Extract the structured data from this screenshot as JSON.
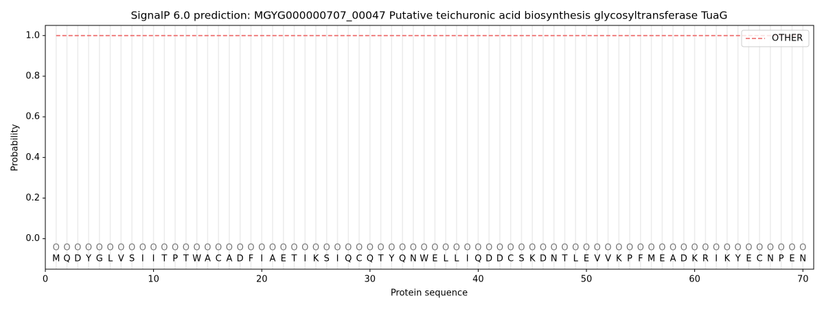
{
  "chart_data": {
    "type": "line",
    "title": "SignalP 6.0 prediction: MGYG000000707_00047 Putative teichuronic acid biosynthesis glycosyltransferase TuaG",
    "x_label": "Protein sequence",
    "y_label": "Probability",
    "x": [
      1,
      2,
      3,
      4,
      5,
      6,
      7,
      8,
      9,
      10,
      11,
      12,
      13,
      14,
      15,
      16,
      17,
      18,
      19,
      20,
      21,
      22,
      23,
      24,
      25,
      26,
      27,
      28,
      29,
      30,
      31,
      32,
      33,
      34,
      35,
      36,
      37,
      38,
      39,
      40,
      41,
      42,
      43,
      44,
      45,
      46,
      47,
      48,
      49,
      50,
      51,
      52,
      53,
      54,
      55,
      56,
      57,
      58,
      59,
      60,
      61,
      62,
      63,
      64,
      65,
      66,
      67,
      68,
      69,
      70
    ],
    "residues": [
      "M",
      "Q",
      "D",
      "Y",
      "G",
      "L",
      "V",
      "S",
      "I",
      "I",
      "T",
      "P",
      "T",
      "W",
      "A",
      "C",
      "A",
      "D",
      "F",
      "I",
      "A",
      "E",
      "T",
      "I",
      "K",
      "S",
      "I",
      "Q",
      "C",
      "Q",
      "T",
      "Y",
      "Q",
      "N",
      "W",
      "E",
      "L",
      "L",
      "I",
      "Q",
      "D",
      "D",
      "C",
      "S",
      "K",
      "D",
      "N",
      "T",
      "L",
      "E",
      "V",
      "V",
      "K",
      "P",
      "F",
      "M",
      "E",
      "A",
      "D",
      "K",
      "R",
      "I",
      "K",
      "Y",
      "E",
      "C",
      "N",
      "P",
      "E",
      "N"
    ],
    "predicted_labels": [
      "O",
      "O",
      "O",
      "O",
      "O",
      "O",
      "O",
      "O",
      "O",
      "O",
      "O",
      "O",
      "O",
      "O",
      "O",
      "O",
      "O",
      "O",
      "O",
      "O",
      "O",
      "O",
      "O",
      "O",
      "O",
      "O",
      "O",
      "O",
      "O",
      "O",
      "O",
      "O",
      "O",
      "O",
      "O",
      "O",
      "O",
      "O",
      "O",
      "O",
      "O",
      "O",
      "O",
      "O",
      "O",
      "O",
      "O",
      "O",
      "O",
      "O",
      "O",
      "O",
      "O",
      "O",
      "O",
      "O",
      "O",
      "O",
      "O",
      "O",
      "O",
      "O",
      "O",
      "O",
      "O",
      "O",
      "O",
      "O",
      "O",
      "O"
    ],
    "series": [
      {
        "name": "OTHER",
        "color": "#ee7777",
        "dash": true,
        "values": [
          1,
          1,
          1,
          1,
          1,
          1,
          1,
          1,
          1,
          1,
          1,
          1,
          1,
          1,
          1,
          1,
          1,
          1,
          1,
          1,
          1,
          1,
          1,
          1,
          1,
          1,
          1,
          1,
          1,
          1,
          1,
          1,
          1,
          1,
          1,
          1,
          1,
          1,
          1,
          1,
          1,
          1,
          1,
          1,
          1,
          1,
          1,
          1,
          1,
          1,
          1,
          1,
          1,
          1,
          1,
          1,
          1,
          1,
          1,
          1,
          1,
          1,
          1,
          1,
          1,
          1,
          1,
          1,
          1,
          1
        ]
      }
    ],
    "xlim": [
      0,
      71
    ],
    "ylim": [
      -0.15,
      1.05
    ],
    "xticks": [
      0,
      10,
      20,
      30,
      40,
      50,
      60,
      70
    ],
    "yticks": [
      {
        "value": 0,
        "label": "0.0"
      },
      0.2,
      0.4,
      0.6,
      0.8,
      {
        "value": 1,
        "label": "1.0"
      }
    ],
    "legend": "upper right"
  }
}
